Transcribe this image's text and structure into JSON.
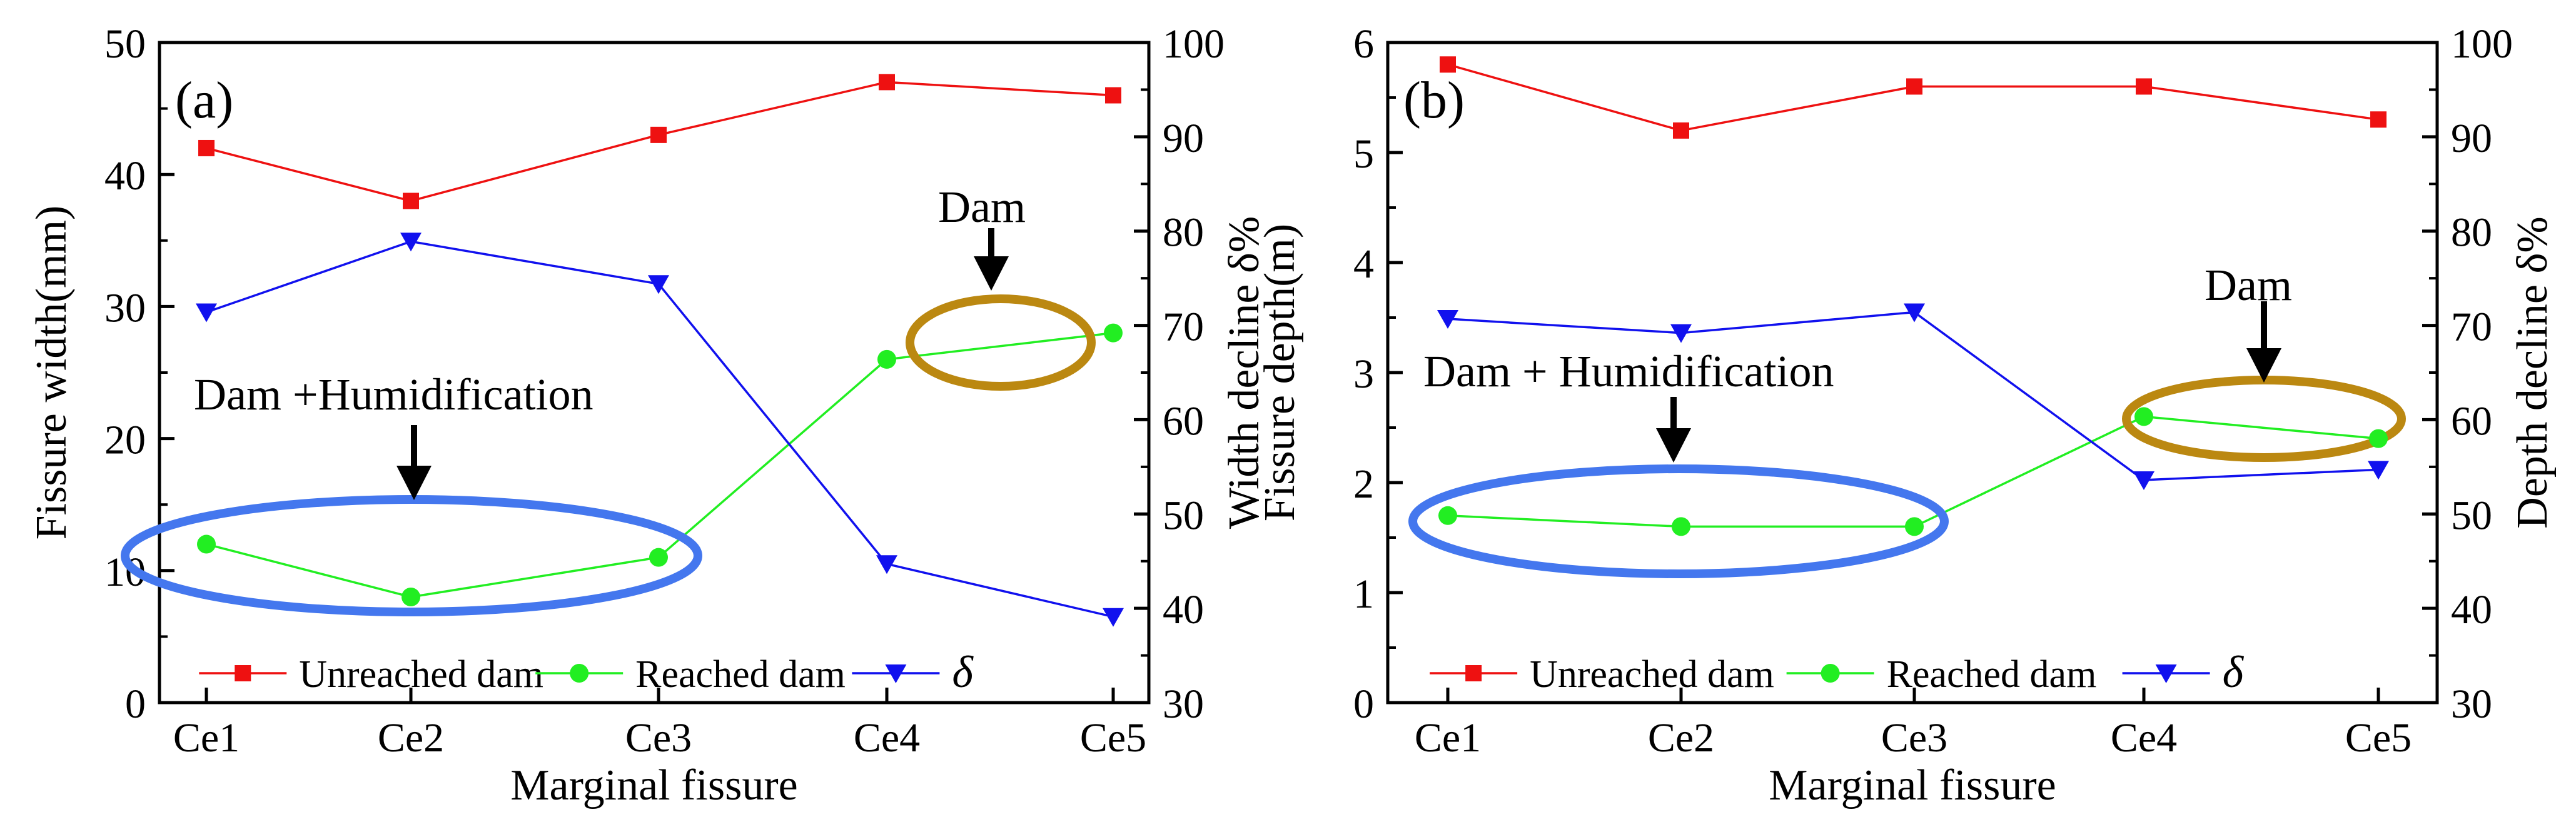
{
  "colors": {
    "unreached": "#ee1111",
    "reached": "#22ee22",
    "delta": "#1111ee",
    "blue_ellipse": "#4477ee",
    "gold_ellipse": "#bb8811",
    "axis": "#000000"
  },
  "chart_data": [
    {
      "type": "line",
      "panel_label": "(a)",
      "xlabel": "Marginal fissure",
      "ylabel": "Fissure width(mm)",
      "y2label": "Width decline δ%",
      "categories": [
        "Ce1",
        "Ce2",
        "Ce3",
        "Ce4",
        "Ce5"
      ],
      "ylim": [
        0,
        50
      ],
      "y_ticks": [
        "0",
        "10",
        "20",
        "30",
        "40",
        "50"
      ],
      "y2lim": [
        30,
        100
      ],
      "y2_ticks": [
        "30",
        "40",
        "50",
        "60",
        "70",
        "80",
        "90",
        "100"
      ],
      "series": [
        {
          "name": "Unreached dam",
          "axis": "left",
          "marker": "square",
          "color": "#ee1111",
          "values": [
            42,
            38,
            43,
            47,
            46
          ]
        },
        {
          "name": "Reached dam",
          "axis": "left",
          "marker": "circle",
          "color": "#22ee22",
          "values": [
            12,
            8,
            11,
            26,
            28
          ]
        },
        {
          "name": "δ",
          "axis": "right",
          "marker": "triangle-down",
          "color": "#1111ee",
          "values": [
            71.4,
            78.9,
            74.4,
            44.7,
            39.1
          ]
        }
      ],
      "annotations": [
        {
          "text": "Dam +Humidification",
          "type": "ellipse-callout",
          "color": "blue"
        },
        {
          "text": "Dam",
          "type": "ellipse-callout",
          "color": "gold"
        }
      ],
      "legend": "bottom"
    },
    {
      "type": "line",
      "panel_label": "(b)",
      "xlabel": "Marginal fissure",
      "ylabel": "Fissure depth(m)",
      "y2label": "Depth decline δ%",
      "categories": [
        "Ce1",
        "Ce2",
        "Ce3",
        "Ce4",
        "Ce5"
      ],
      "ylim": [
        0,
        6
      ],
      "y_ticks": [
        "0",
        "1",
        "2",
        "3",
        "4",
        "5",
        "6"
      ],
      "y2lim": [
        30,
        100
      ],
      "y2_ticks": [
        "30",
        "40",
        "50",
        "60",
        "70",
        "80",
        "90",
        "100"
      ],
      "series": [
        {
          "name": "Unreached dam",
          "axis": "left",
          "marker": "square",
          "color": "#ee1111",
          "values": [
            5.8,
            5.2,
            5.6,
            5.6,
            5.3
          ]
        },
        {
          "name": "Reached dam",
          "axis": "left",
          "marker": "circle",
          "color": "#22ee22",
          "values": [
            1.7,
            1.6,
            1.6,
            2.6,
            2.4
          ]
        },
        {
          "name": "δ",
          "axis": "right",
          "marker": "triangle-down",
          "color": "#1111ee",
          "values": [
            70.7,
            69.2,
            71.4,
            53.6,
            54.7
          ]
        }
      ],
      "annotations": [
        {
          "text": "Dam + Humidification",
          "type": "ellipse-callout",
          "color": "blue"
        },
        {
          "text": "Dam",
          "type": "ellipse-callout",
          "color": "gold"
        }
      ],
      "legend": "bottom"
    }
  ]
}
